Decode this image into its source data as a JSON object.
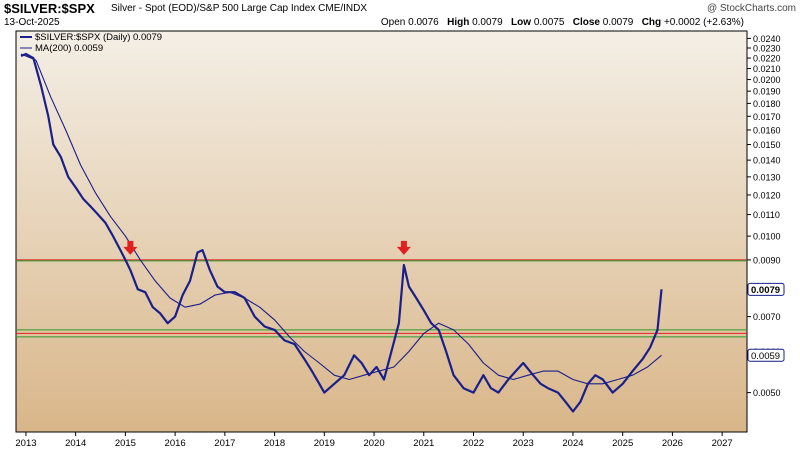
{
  "header": {
    "title": "$SILVER:$SPX",
    "subtitle": "Silver - Spot (EOD)/S&P 500 Large Cap Index  CME/INDX",
    "date": "13-Oct-2025",
    "brand": "@ StockCharts.com",
    "open_label": "Open",
    "open": "0.0076",
    "high_label": "High",
    "high": "0.0079",
    "low_label": "Low",
    "low": "0.0075",
    "close_label": "Close",
    "close": "0.0079",
    "chg_label": "Chg",
    "chg": "+0.0002 (+2.63%)"
  },
  "legend": {
    "price": "$SILVER:$SPX (Daily) 0.0079",
    "ma": "MA(200) 0.0059"
  },
  "chart_data": {
    "type": "line",
    "y_scale": "log",
    "ylim": [
      0.0042,
      0.0248
    ],
    "xlim": [
      2012.8,
      2027.5
    ],
    "grid": false,
    "legend_position": "top-left",
    "colors": {
      "price": "#1a1f8c",
      "ma": "#1a1f8c",
      "red_line": "#e02020",
      "green_line": "#2a9a2a",
      "arrow": "#e02020",
      "bg_top": "#f4efe6",
      "bg_bottom": "#d9b689"
    },
    "x_ticks": [
      "2013",
      "2014",
      "2015",
      "2016",
      "2017",
      "2018",
      "2019",
      "2020",
      "2021",
      "2022",
      "2023",
      "2024",
      "2025",
      "2026",
      "2027"
    ],
    "y_ticks": [
      "0.0240",
      "0.0230",
      "0.0220",
      "0.0210",
      "0.0200",
      "0.0190",
      "0.0180",
      "0.0170",
      "0.0160",
      "0.0150",
      "0.0140",
      "0.0130",
      "0.0120",
      "0.0110",
      "0.0100",
      "0.0090",
      "0.0080",
      "0.0070",
      "0.0060",
      "0.0050"
    ],
    "y_tick_values": [
      0.024,
      0.023,
      0.022,
      0.021,
      0.02,
      0.019,
      0.018,
      0.017,
      0.016,
      0.015,
      0.014,
      0.013,
      0.012,
      0.011,
      0.01,
      0.009,
      0.008,
      0.007,
      0.006,
      0.005
    ],
    "last_price_label": "0.0079",
    "last_ma_label": "0.0059",
    "last_price": 0.0079,
    "last_ma": 0.0059,
    "horizontal_lines": [
      {
        "color": "red",
        "value": 0.009
      },
      {
        "color": "red",
        "value": 0.0065
      },
      {
        "color": "green",
        "value": 0.009
      },
      {
        "color": "green",
        "value": 0.0066
      },
      {
        "color": "green",
        "value": 0.0064
      }
    ],
    "arrows": [
      {
        "x": 2015.1,
        "y": 0.0092
      },
      {
        "x": 2020.6,
        "y": 0.0092
      }
    ],
    "series": [
      {
        "name": "$SILVER:$SPX (Daily) 0.0079",
        "x": [
          2012.9,
          2013.0,
          2013.15,
          2013.3,
          2013.45,
          2013.55,
          2013.7,
          2013.85,
          2014.0,
          2014.15,
          2014.3,
          2014.45,
          2014.6,
          2014.75,
          2014.9,
          2015.0,
          2015.1,
          2015.25,
          2015.4,
          2015.55,
          2015.7,
          2015.85,
          2016.0,
          2016.15,
          2016.3,
          2016.45,
          2016.55,
          2016.7,
          2016.85,
          2017.0,
          2017.2,
          2017.4,
          2017.6,
          2017.8,
          2018.0,
          2018.2,
          2018.4,
          2018.6,
          2018.75,
          2018.9,
          2019.0,
          2019.2,
          2019.4,
          2019.6,
          2019.75,
          2019.9,
          2020.05,
          2020.2,
          2020.35,
          2020.5,
          2020.6,
          2020.7,
          2020.85,
          2021.0,
          2021.15,
          2021.3,
          2021.45,
          2021.6,
          2021.8,
          2022.0,
          2022.2,
          2022.35,
          2022.5,
          2022.7,
          2022.85,
          2023.0,
          2023.2,
          2023.35,
          2023.5,
          2023.7,
          2023.85,
          2024.0,
          2024.15,
          2024.3,
          2024.45,
          2024.6,
          2024.8,
          2025.0,
          2025.2,
          2025.4,
          2025.55,
          2025.7,
          2025.78
        ],
        "y": [
          0.0222,
          0.0224,
          0.022,
          0.0195,
          0.017,
          0.015,
          0.0142,
          0.013,
          0.0124,
          0.0118,
          0.0114,
          0.011,
          0.0106,
          0.01,
          0.0094,
          0.009,
          0.0086,
          0.0079,
          0.0078,
          0.0073,
          0.0071,
          0.0068,
          0.007,
          0.0077,
          0.0082,
          0.0093,
          0.0094,
          0.0086,
          0.008,
          0.0078,
          0.0078,
          0.0076,
          0.007,
          0.0067,
          0.0066,
          0.0063,
          0.0062,
          0.0058,
          0.0055,
          0.0052,
          0.005,
          0.0052,
          0.0054,
          0.0059,
          0.0057,
          0.0054,
          0.0056,
          0.0053,
          0.006,
          0.0068,
          0.0088,
          0.008,
          0.0076,
          0.0072,
          0.0068,
          0.0066,
          0.006,
          0.0054,
          0.0051,
          0.005,
          0.0054,
          0.0051,
          0.005,
          0.0053,
          0.0055,
          0.0057,
          0.0054,
          0.0052,
          0.0051,
          0.005,
          0.0048,
          0.0046,
          0.0048,
          0.0052,
          0.0054,
          0.0053,
          0.005,
          0.0052,
          0.0055,
          0.0058,
          0.0061,
          0.0066,
          0.0079
        ]
      },
      {
        "name": "MA(200) 0.0059",
        "x": [
          2012.9,
          2013.2,
          2013.5,
          2013.8,
          2014.1,
          2014.4,
          2014.7,
          2015.0,
          2015.3,
          2015.6,
          2015.9,
          2016.2,
          2016.5,
          2016.8,
          2017.1,
          2017.4,
          2017.7,
          2018.0,
          2018.3,
          2018.6,
          2018.9,
          2019.2,
          2019.5,
          2019.8,
          2020.1,
          2020.4,
          2020.7,
          2021.0,
          2021.3,
          2021.6,
          2021.9,
          2022.2,
          2022.5,
          2022.8,
          2023.1,
          2023.4,
          2023.7,
          2024.0,
          2024.3,
          2024.6,
          2024.9,
          2025.2,
          2025.5,
          2025.78
        ],
        "y": [
          0.0224,
          0.0218,
          0.0185,
          0.016,
          0.0137,
          0.0121,
          0.0109,
          0.01,
          0.009,
          0.0082,
          0.0076,
          0.0073,
          0.0074,
          0.0077,
          0.0078,
          0.0076,
          0.0073,
          0.0069,
          0.0064,
          0.006,
          0.0057,
          0.0054,
          0.0053,
          0.0054,
          0.0055,
          0.0056,
          0.006,
          0.0065,
          0.0068,
          0.0066,
          0.0062,
          0.0057,
          0.0054,
          0.0053,
          0.0054,
          0.0055,
          0.0055,
          0.0053,
          0.0052,
          0.0052,
          0.0053,
          0.0054,
          0.0056,
          0.0059
        ]
      }
    ]
  }
}
